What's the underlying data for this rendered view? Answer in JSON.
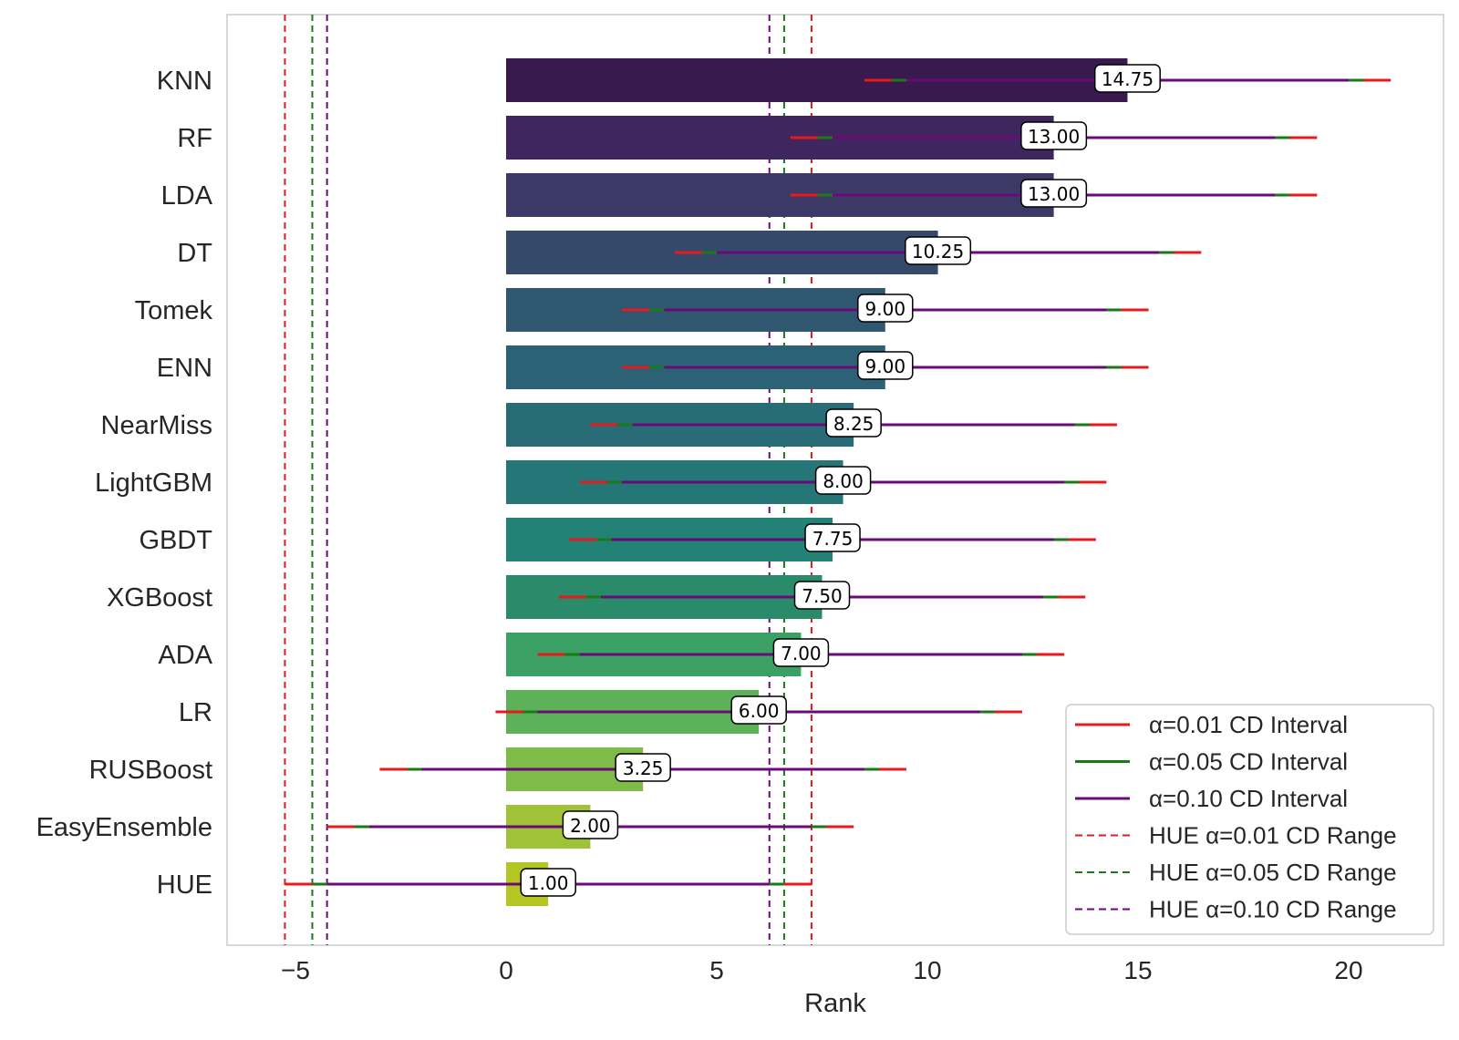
{
  "chart_data": {
    "type": "bar",
    "orientation": "horizontal",
    "title": "",
    "xlabel": "Rank",
    "ylabel": "",
    "xlim": [
      -6.2,
      22.5
    ],
    "xticks": [
      -5,
      0,
      5,
      10,
      15,
      20
    ],
    "xtick_labels": [
      "−5",
      "0",
      "5",
      "10",
      "15",
      "20"
    ],
    "grid": false,
    "categories": [
      "KNN",
      "RF",
      "LDA",
      "DT",
      "Tomek",
      "ENN",
      "NearMiss",
      "LightGBM",
      "GBDT",
      "XGBoost",
      "ADA",
      "LR",
      "RUSBoost",
      "EasyEnsemble",
      "HUE"
    ],
    "values": [
      14.75,
      13.0,
      13.0,
      10.25,
      9.0,
      9.0,
      8.25,
      8.0,
      7.75,
      7.5,
      7.0,
      6.0,
      3.25,
      2.0,
      1.0
    ],
    "value_labels": [
      "14.75",
      "13.00",
      "13.00",
      "10.25",
      "9.00",
      "9.00",
      "8.25",
      "8.00",
      "7.75",
      "7.50",
      "7.00",
      "6.00",
      "3.25",
      "2.00",
      "1.00"
    ],
    "bar_colors": [
      "#3a1a4e",
      "#40265e",
      "#3d3966",
      "#35496b",
      "#2f576f",
      "#2c6275",
      "#276c77",
      "#247677",
      "#218275",
      "#2a8b6a",
      "#3aa063",
      "#5cb159",
      "#7fbb49",
      "#a0c238",
      "#b4c524"
    ],
    "cd_half_widths": {
      "alpha_0.01": 6.25,
      "alpha_0.05": 5.6,
      "alpha_0.10": 5.25
    },
    "hue_cd_ranges": {
      "alpha_0.01": [
        -5.25,
        7.25
      ],
      "alpha_0.05": [
        -4.6,
        6.6
      ],
      "alpha_0.10": [
        -4.25,
        6.25
      ]
    },
    "colors": {
      "alpha_0.01": "#e41a1c",
      "alpha_0.05": "#1a7a1a",
      "alpha_0.10": "#6a0a78"
    },
    "legend": {
      "position": "lower-right",
      "entries": [
        {
          "label": "α=0.01 CD Interval",
          "style": "solid",
          "key": "alpha_0.01"
        },
        {
          "label": "α=0.05 CD Interval",
          "style": "solid",
          "key": "alpha_0.05"
        },
        {
          "label": "α=0.10 CD Interval",
          "style": "solid",
          "key": "alpha_0.10"
        },
        {
          "label": "HUE α=0.01 CD Range",
          "style": "dashed",
          "key": "alpha_0.01"
        },
        {
          "label": "HUE α=0.05 CD Range",
          "style": "dashed",
          "key": "alpha_0.05"
        },
        {
          "label": "HUE α=0.10 CD Range",
          "style": "dashed",
          "key": "alpha_0.10"
        }
      ]
    }
  }
}
